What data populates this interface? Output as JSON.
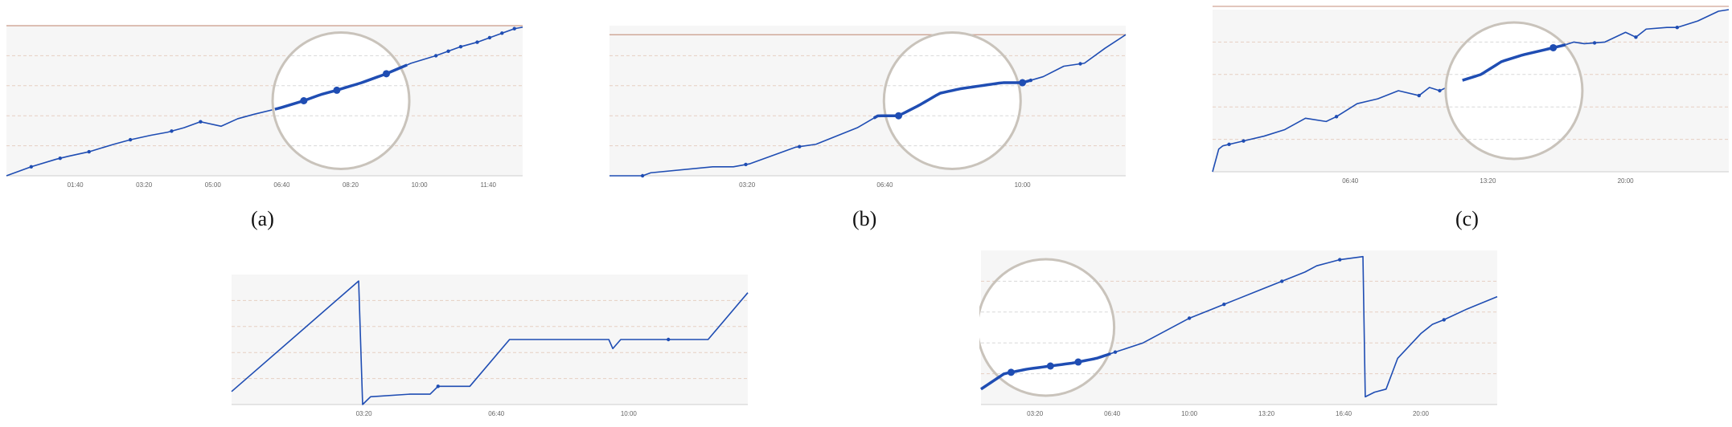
{
  "colors": {
    "line": "#1f4db3",
    "panel_bg": "#f6f6f6",
    "grid": "#e6cfc2",
    "axis": "#cfcfcf",
    "ref_line": "#c99a88",
    "zoom_border": "#c9c3bb",
    "zoom_fill": "#ffffff"
  },
  "captions": [
    "(a)",
    "(b)",
    "(c)"
  ],
  "chart_data": [
    {
      "type": "line",
      "caption": "(a)",
      "x_unit": "hours",
      "xlim": [
        0,
        12.5
      ],
      "ylim": [
        0,
        1
      ],
      "tick_values": [
        1.667,
        3.333,
        5,
        6.667,
        8.333,
        10,
        11.667
      ],
      "tick_labels": [
        "01:40",
        "03:20",
        "05:00",
        "06:40",
        "08:20",
        "10:00",
        "11:40"
      ],
      "ref_line_y": 1.0,
      "grid": true,
      "series": [
        {
          "x": [
            0,
            0.6,
            1.2,
            1.5,
            2.0,
            2.6,
            3.0,
            3.5,
            3.9,
            4.3,
            4.7,
            5.2,
            5.6,
            6.0,
            6.6,
            7.2,
            7.6,
            8.0,
            8.6,
            9.2,
            9.8,
            10.4,
            10.7,
            11.0,
            11.4,
            11.7,
            12.0,
            12.3,
            12.5
          ],
          "y": [
            0.0,
            0.06,
            0.11,
            0.13,
            0.16,
            0.21,
            0.24,
            0.27,
            0.29,
            0.32,
            0.36,
            0.33,
            0.38,
            0.41,
            0.45,
            0.5,
            0.54,
            0.57,
            0.62,
            0.68,
            0.75,
            0.8,
            0.83,
            0.86,
            0.89,
            0.92,
            0.95,
            0.98,
            0.99
          ]
        }
      ],
      "markers_x": [
        0.6,
        1.3,
        2.0,
        3.0,
        4.0,
        4.7,
        6.6,
        7.2,
        8.0,
        9.2,
        10.4,
        10.7,
        11.0,
        11.4,
        11.7,
        12.0,
        12.3
      ],
      "zoom": {
        "x_center": 8.1,
        "x_halfwidth": 1.6,
        "markers_x": [
          7.2,
          8.0,
          9.2
        ]
      }
    },
    {
      "type": "line",
      "caption": "(b)",
      "x_unit": "hours",
      "xlim": [
        0,
        12.5
      ],
      "ylim": [
        0,
        1
      ],
      "tick_values": [
        3.333,
        6.667,
        10
      ],
      "tick_labels": [
        "03:20",
        "06:40",
        "10:00"
      ],
      "ref_line_y": 0.94,
      "grid": true,
      "series": [
        {
          "x": [
            0,
            0.8,
            1.0,
            2.5,
            3.0,
            3.4,
            4.5,
            5.0,
            6.0,
            6.5,
            7.0,
            7.5,
            8.0,
            8.5,
            9.0,
            9.5,
            10.0,
            10.5,
            11.0,
            11.5,
            12.0,
            12.5
          ],
          "y": [
            0.0,
            0.0,
            0.02,
            0.06,
            0.06,
            0.08,
            0.19,
            0.21,
            0.32,
            0.4,
            0.4,
            0.47,
            0.55,
            0.58,
            0.6,
            0.62,
            0.62,
            0.66,
            0.73,
            0.75,
            0.85,
            0.94
          ]
        }
      ],
      "markers_x": [
        0.8,
        3.3,
        4.6,
        7.0,
        10.2,
        11.4
      ],
      "zoom": {
        "x_center": 8.3,
        "x_halfwidth": 1.9,
        "markers_x": [
          7.0,
          10.0
        ]
      }
    },
    {
      "type": "line",
      "caption": "(c)",
      "x_unit": "hours",
      "xlim": [
        0,
        25
      ],
      "ylim": [
        0,
        1
      ],
      "tick_values": [
        6.667,
        13.333,
        20
      ],
      "tick_labels": [
        "06:40",
        "13:20",
        "20:00"
      ],
      "ref_line_y": 1.02,
      "grid": true,
      "series": [
        {
          "x": [
            0,
            0.3,
            0.5,
            1.5,
            2.5,
            3.5,
            4.5,
            5.5,
            6.0,
            7.0,
            8.0,
            9.0,
            10.0,
            10.5,
            11.0,
            11.5,
            12.0,
            12.5,
            13.0,
            14.0,
            15.0,
            16.0,
            17.0,
            17.5,
            18.0,
            19.0,
            20.0,
            20.5,
            21.0,
            22.0,
            22.5,
            23.5,
            24.5,
            25.0
          ],
          "y": [
            0.0,
            0.14,
            0.16,
            0.19,
            0.22,
            0.26,
            0.33,
            0.31,
            0.34,
            0.42,
            0.45,
            0.5,
            0.47,
            0.52,
            0.5,
            0.53,
            0.56,
            0.58,
            0.6,
            0.68,
            0.72,
            0.75,
            0.78,
            0.8,
            0.79,
            0.8,
            0.86,
            0.83,
            0.88,
            0.89,
            0.89,
            0.93,
            0.99,
            1.0
          ]
        }
      ],
      "markers_x": [
        0.8,
        1.5,
        6.0,
        10.0,
        11.0,
        12.0,
        16.0,
        18.5,
        20.5,
        22.5
      ],
      "zoom": {
        "x_center": 14.6,
        "x_halfwidth": 2.5,
        "markers_x": [
          16.5
        ]
      }
    },
    {
      "type": "line",
      "caption": "",
      "x_unit": "hours",
      "xlim": [
        0,
        13
      ],
      "ylim": [
        0,
        1
      ],
      "tick_values": [
        3.333,
        6.667,
        10
      ],
      "tick_labels": [
        "03:20",
        "06:40",
        "10:00"
      ],
      "grid": true,
      "series": [
        {
          "x": [
            0,
            3.2,
            3.3,
            3.5,
            4.5,
            5.0,
            5.2,
            6.0,
            7.0,
            8.5,
            9.0,
            9.3,
            9.5,
            9.6,
            9.8,
            10.0,
            11.0,
            12.0,
            13.0
          ],
          "y": [
            0.1,
            0.95,
            0.0,
            0.06,
            0.08,
            0.08,
            0.14,
            0.14,
            0.5,
            0.5,
            0.5,
            0.5,
            0.5,
            0.43,
            0.5,
            0.5,
            0.5,
            0.5,
            0.86
          ]
        }
      ],
      "markers_x": [
        5.2,
        11.0
      ],
      "zoom": null
    },
    {
      "type": "line",
      "caption": "",
      "x_unit": "hours",
      "xlim": [
        1.0,
        23.3
      ],
      "ylim": [
        0,
        1
      ],
      "tick_values": [
        3.333,
        6.667,
        10,
        13.333,
        16.667,
        20
      ],
      "tick_labels": [
        "03:20",
        "06:40",
        "10:00",
        "13:20",
        "16:40",
        "20:00"
      ],
      "grid": true,
      "series": [
        {
          "x": [
            1.0,
            2.0,
            3.0,
            4.0,
            5.0,
            6.0,
            7.0,
            8.0,
            9.0,
            10.0,
            11.0,
            12.0,
            13.0,
            14.0,
            15.0,
            15.5,
            16.0,
            16.5,
            17.5,
            17.6,
            18.0,
            18.5,
            19.0,
            19.5,
            20.0,
            20.5,
            21.0,
            22.0,
            23.3
          ],
          "y": [
            0.1,
            0.2,
            0.23,
            0.25,
            0.27,
            0.3,
            0.35,
            0.4,
            0.48,
            0.56,
            0.62,
            0.68,
            0.74,
            0.8,
            0.86,
            0.9,
            0.92,
            0.94,
            0.96,
            0.05,
            0.08,
            0.1,
            0.3,
            0.38,
            0.46,
            0.52,
            0.55,
            0.62,
            0.7
          ]
        }
      ],
      "markers_x": [
        6.8,
        10.0,
        11.5,
        14.0,
        16.5,
        21.0
      ],
      "zoom": {
        "x_center": 3.8,
        "x_halfwidth": 2.8,
        "markers_x": [
          2.3,
          4.0,
          5.2
        ]
      }
    }
  ]
}
